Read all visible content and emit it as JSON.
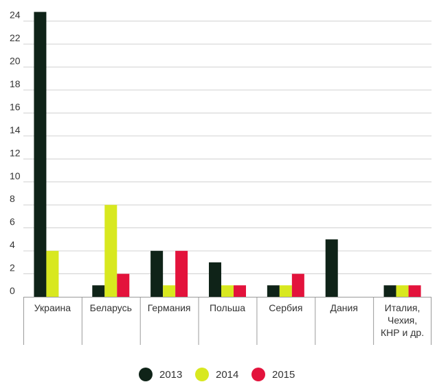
{
  "chart_data": {
    "type": "bar",
    "categories": [
      [
        "Украина"
      ],
      [
        "Беларусь"
      ],
      [
        "Германия"
      ],
      [
        "Польша"
      ],
      [
        "Сербия"
      ],
      [
        "Дания"
      ],
      [
        "Италия,",
        "Чехия,",
        "КНР и др."
      ]
    ],
    "series": [
      {
        "name": "2013",
        "color": "#0f2318",
        "values": [
          24.8,
          1,
          4,
          3,
          1,
          5,
          1
        ]
      },
      {
        "name": "2014",
        "color": "#d8e81f",
        "values": [
          4,
          8,
          1,
          1,
          1,
          0,
          1
        ]
      },
      {
        "name": "2015",
        "color": "#e3133c",
        "values": [
          0,
          2,
          4,
          1,
          2,
          0,
          1
        ]
      }
    ],
    "yticks": [
      "0",
      "2",
      "4",
      "6",
      "8",
      "10",
      "12",
      "14",
      "16",
      "18",
      "20",
      "22",
      "24"
    ],
    "ylim": [
      0,
      25
    ],
    "grid": true,
    "legend": "bottom"
  }
}
